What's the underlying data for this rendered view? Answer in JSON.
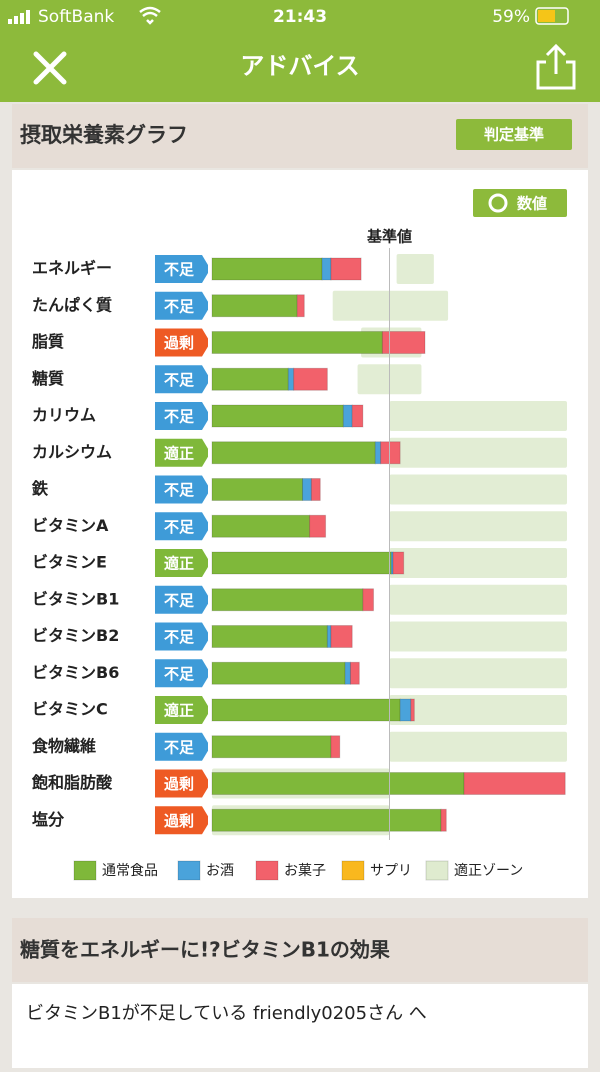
{
  "status_bar": {
    "carrier": "SoftBank",
    "time": "21:43",
    "battery": "59%"
  },
  "header": {
    "title": "アドバイス"
  },
  "section": {
    "title": "摂取栄養素グラフ",
    "button": "判定基準",
    "toggle": "数値"
  },
  "chart_data": {
    "type": "stacked-bar-horizontal",
    "categories": [
      "エネルギー",
      "たんぱく質",
      "脂質",
      "糖質",
      "カリウム",
      "カルシウム",
      "鉄",
      "ビタミンA",
      "ビタミンE",
      "ビタミンB1",
      "ビタミンB2",
      "ビタミンB6",
      "ビタミンC",
      "食物繊維",
      "飽和脂肪酸",
      "塩分"
    ],
    "statuses": [
      {
        "label": "不足",
        "color": "#3e9bd8"
      },
      {
        "label": "不足",
        "color": "#3e9bd8"
      },
      {
        "label": "過剰",
        "color": "#ee5a24"
      },
      {
        "label": "不足",
        "color": "#3e9bd8"
      },
      {
        "label": "不足",
        "color": "#3e9bd8"
      },
      {
        "label": "適正",
        "color": "#7fb83a"
      },
      {
        "label": "不足",
        "color": "#3e9bd8"
      },
      {
        "label": "不足",
        "color": "#3e9bd8"
      },
      {
        "label": "適正",
        "color": "#7fb83a"
      },
      {
        "label": "不足",
        "color": "#3e9bd8"
      },
      {
        "label": "不足",
        "color": "#3e9bd8"
      },
      {
        "label": "不足",
        "color": "#3e9bd8"
      },
      {
        "label": "適正",
        "color": "#7fb83a"
      },
      {
        "label": "不足",
        "color": "#3e9bd8"
      },
      {
        "label": "過剰",
        "color": "#ee5a24"
      },
      {
        "label": "過剰",
        "color": "#ee5a24"
      }
    ],
    "series": [
      {
        "name": "通常食品",
        "color": "#7fb83a",
        "values": [
          62,
          48,
          96,
          43,
          74,
          92,
          51,
          55,
          101,
          85,
          65,
          75,
          106,
          67,
          142,
          129
        ]
      },
      {
        "name": "お酒",
        "color": "#4aa3db",
        "values": [
          5,
          0,
          0,
          3,
          5,
          3,
          5,
          0,
          1,
          0,
          2,
          3,
          6,
          0,
          0,
          0
        ]
      },
      {
        "name": "お菓子",
        "color": "#f2616b",
        "values": [
          17,
          4,
          24,
          19,
          6,
          11,
          5,
          9,
          6,
          6,
          12,
          5,
          2,
          5,
          57,
          3
        ]
      },
      {
        "name": "サプリ",
        "color": "#f9b81e",
        "values": [
          0,
          0,
          0,
          0,
          0,
          0,
          0,
          0,
          0,
          0,
          0,
          0,
          0,
          0,
          0,
          0
        ]
      }
    ],
    "zone": {
      "name": "適正ゾーン",
      "color": "#dfebcf",
      "ranges": [
        [
          104,
          125
        ],
        [
          68,
          133
        ],
        [
          84,
          118
        ],
        [
          82,
          118
        ],
        [
          100,
          200
        ],
        [
          100,
          200
        ],
        [
          100,
          200
        ],
        [
          100,
          200
        ],
        [
          100,
          200
        ],
        [
          100,
          200
        ],
        [
          100,
          200
        ],
        [
          100,
          200
        ],
        [
          100,
          200
        ],
        [
          100,
          200
        ],
        [
          0,
          100
        ],
        [
          0,
          100
        ]
      ]
    },
    "reference": {
      "value": 100,
      "label": "基準値"
    },
    "xlim": [
      0,
      200
    ]
  },
  "article": {
    "title": "糖質をエネルギーに!?ビタミンB1の効果",
    "subtitle": "ビタミンB1が不足している friendly0205さん へ"
  }
}
